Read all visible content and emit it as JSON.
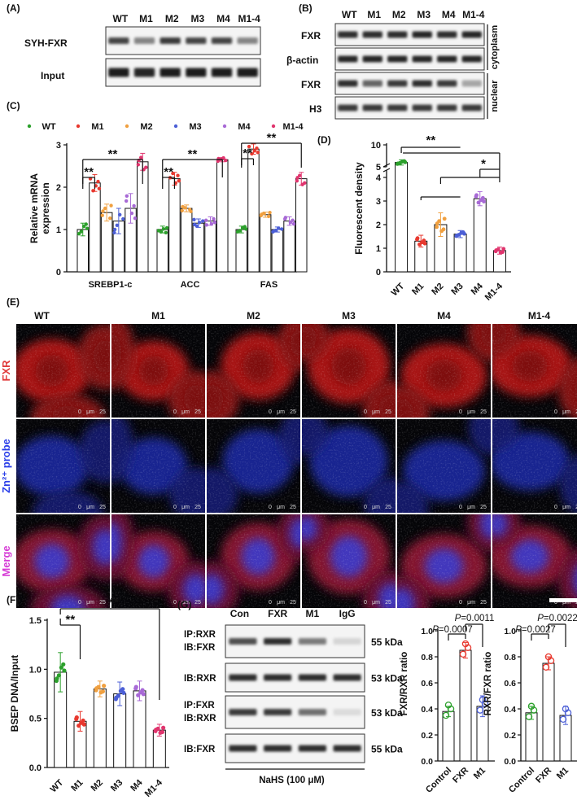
{
  "panels": {
    "A": {
      "letter": "(A)",
      "lanes": [
        "WT",
        "M1",
        "M2",
        "M3",
        "M4",
        "M1-4"
      ],
      "rows": [
        "SYH-FXR",
        "Input"
      ],
      "band_intensity": [
        [
          0.75,
          0.45,
          0.8,
          0.75,
          0.75,
          0.45
        ],
        [
          0.95,
          0.9,
          0.95,
          0.95,
          0.95,
          0.95
        ]
      ]
    },
    "B": {
      "letter": "(B)",
      "lanes": [
        "WT",
        "M1",
        "M2",
        "M3",
        "M4",
        "M1-4"
      ],
      "rows": [
        "FXR",
        "β-actin",
        "FXR",
        "H3"
      ],
      "compartments": [
        "cytoplasm",
        "nuclear"
      ],
      "band_intensity": [
        [
          0.85,
          0.85,
          0.85,
          0.9,
          0.85,
          0.9
        ],
        [
          0.9,
          0.9,
          0.9,
          0.9,
          0.9,
          0.9
        ],
        [
          0.85,
          0.6,
          0.8,
          0.85,
          0.8,
          0.3
        ],
        [
          0.8,
          0.8,
          0.8,
          0.8,
          0.8,
          0.8
        ]
      ]
    },
    "C": {
      "letter": "(C)",
      "legend": [
        {
          "name": "WT",
          "color": "#2ca02c"
        },
        {
          "name": "M1",
          "color": "#e8392f"
        },
        {
          "name": "M2",
          "color": "#f0a040"
        },
        {
          "name": "M3",
          "color": "#4c5fd6"
        },
        {
          "name": "M4",
          "color": "#a86ad6"
        },
        {
          "name": "M1-4",
          "color": "#e0356e"
        }
      ],
      "ylabel": "Relative mRNA expression",
      "yticks": [
        "0",
        "1",
        "2",
        "3"
      ],
      "sig": [
        "**",
        "**",
        "**",
        "**",
        "**",
        "**"
      ]
    },
    "D": {
      "letter": "(D)",
      "ylabel": "Fluorescent density",
      "yticks_lower": [
        "0",
        "1",
        "2",
        "3",
        "4"
      ],
      "yticks_upper": [
        "5",
        "10"
      ],
      "sig": [
        "**",
        "*"
      ]
    },
    "E": {
      "letter": "(E)",
      "columns": [
        "WT",
        "M1",
        "M2",
        "M3",
        "M4",
        "M1-4"
      ],
      "rows": [
        "FXR",
        "Zn²⁺ probe",
        "Merge"
      ],
      "scale_text": [
        "0",
        "μm",
        "25"
      ]
    },
    "F": {
      "letter": "(F)",
      "ylabel": "BSEP DNA/Input",
      "yticks": [
        "0.0",
        "0.5",
        "1.0",
        "1.5"
      ],
      "sig": [
        "**",
        "**"
      ]
    },
    "G": {
      "letter": "(G)",
      "lanes": [
        "Con",
        "FXR",
        "M1",
        "IgG"
      ],
      "blot_rows": [
        {
          "lines": [
            "IP:RXR",
            "IB:FXR"
          ],
          "kda": "55 kDa"
        },
        {
          "lines": [
            "IB:RXR"
          ],
          "kda": "53 kDa"
        },
        {
          "lines": [
            "IP:FXR",
            "IB:RXR"
          ],
          "kda": "53 kDa"
        },
        {
          "lines": [
            "IB:FXR"
          ],
          "kda": "55 kDa"
        }
      ],
      "band_intensity": [
        [
          0.7,
          0.85,
          0.5,
          0.08
        ],
        [
          0.85,
          0.85,
          0.85,
          0.85
        ],
        [
          0.8,
          0.8,
          0.55,
          0.05
        ],
        [
          0.85,
          0.85,
          0.85,
          0.85
        ]
      ],
      "treatment": "NaHS (100 μM)",
      "ratio1": {
        "ylabel": "FXR/RXR ratio",
        "yticks": [
          "0.0",
          "0.2",
          "0.4",
          "0.6",
          "0.8",
          "1.0"
        ],
        "p_labels": [
          "P=0.0011",
          "P=0.0007"
        ]
      },
      "ratio2": {
        "ylabel": "RXR/FXR ratio",
        "yticks": [
          "0.0",
          "0.2",
          "0.4",
          "0.6",
          "0.8",
          "1.0"
        ],
        "p_labels": [
          "P=0.0022",
          "P=0.0027"
        ]
      }
    }
  },
  "chart_data": [
    {
      "id": "C",
      "type": "bar",
      "ylabel": "Relative mRNA expression",
      "ylim": [
        0,
        3
      ],
      "categories": [
        "SREBP1-c",
        "ACC",
        "FAS"
      ],
      "series": [
        {
          "name": "WT",
          "values": [
            1.0,
            1.0,
            1.0
          ],
          "err": [
            0.15,
            0.08,
            0.08
          ]
        },
        {
          "name": "M1",
          "values": [
            2.1,
            2.2,
            2.9
          ],
          "err": [
            0.2,
            0.15,
            0.12
          ]
        },
        {
          "name": "M2",
          "values": [
            1.4,
            1.5,
            1.35
          ],
          "err": [
            0.2,
            0.08,
            0.06
          ]
        },
        {
          "name": "M3",
          "values": [
            1.2,
            1.15,
            1.0
          ],
          "err": [
            0.3,
            0.1,
            0.06
          ]
        },
        {
          "name": "M4",
          "values": [
            1.5,
            1.2,
            1.2
          ],
          "err": [
            0.35,
            0.1,
            0.1
          ]
        },
        {
          "name": "M1-4",
          "values": [
            2.6,
            2.65,
            2.2
          ],
          "err": [
            0.2,
            0.05,
            0.15
          ]
        }
      ]
    },
    {
      "id": "D",
      "type": "bar",
      "ylabel": "Fluorescent density",
      "ylim": [
        0,
        10
      ],
      "axis_break": [
        4.3,
        5
      ],
      "categories": [
        "WT",
        "M1",
        "M2",
        "M3",
        "M4",
        "M1-4"
      ],
      "values": [
        6.0,
        1.3,
        2.0,
        1.6,
        3.1,
        0.9
      ],
      "err": [
        0.6,
        0.25,
        0.5,
        0.15,
        0.3,
        0.15
      ]
    },
    {
      "id": "F",
      "type": "bar",
      "ylabel": "BSEP DNA/Input",
      "ylim": [
        0,
        1.5
      ],
      "categories": [
        "WT",
        "M1",
        "M2",
        "M3",
        "M4",
        "M1-4"
      ],
      "values": [
        0.97,
        0.47,
        0.8,
        0.75,
        0.78,
        0.38
      ],
      "err": [
        0.2,
        0.1,
        0.08,
        0.12,
        0.1,
        0.06
      ]
    },
    {
      "id": "G1",
      "type": "bar",
      "ylabel": "FXR/RXR ratio",
      "ylim": [
        0,
        1.0
      ],
      "categories": [
        "Control",
        "FXR",
        "M1"
      ],
      "values": [
        0.38,
        0.85,
        0.42
      ],
      "err": [
        0.04,
        0.06,
        0.08
      ]
    },
    {
      "id": "G2",
      "type": "bar",
      "ylabel": "RXR/FXR ratio",
      "ylim": [
        0,
        1.0
      ],
      "categories": [
        "Control",
        "FXR",
        "M1"
      ],
      "values": [
        0.37,
        0.75,
        0.35
      ],
      "err": [
        0.05,
        0.05,
        0.07
      ]
    }
  ]
}
